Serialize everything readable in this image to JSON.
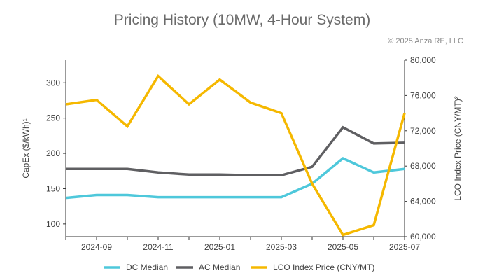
{
  "chart_data": {
    "type": "line",
    "title": "Pricing History (10MW, 4-Hour System)",
    "copyright": "© 2025 Anza RE, LLC",
    "ylabel_left": "CapEx ($/kWh)¹",
    "ylabel_right": "LCO Index Price (CNY/MT)²",
    "x": [
      "2024-08",
      "2024-09",
      "2024-10",
      "2024-11",
      "2024-12",
      "2025-01",
      "2025-02",
      "2025-03",
      "2025-04",
      "2025-05",
      "2025-06",
      "2025-07"
    ],
    "x_tick_labels": [
      "2024-09",
      "2024-11",
      "2025-01",
      "2025-03",
      "2025-05",
      "2025-07"
    ],
    "ylim_left": [
      82,
      332
    ],
    "yticks_left": [
      100,
      150,
      200,
      250,
      300
    ],
    "ylim_right": [
      60000,
      80000
    ],
    "yticks_right": [
      60000,
      64000,
      68000,
      72000,
      76000,
      80000
    ],
    "ytick_labels_right": [
      "60,000",
      "64,000",
      "68,000",
      "72,000",
      "76,000",
      "80,000"
    ],
    "series": [
      {
        "name": "DC Median",
        "axis": "left",
        "color": "#4ec8db",
        "values": [
          137,
          141,
          141,
          138,
          138,
          138,
          138,
          138,
          157,
          193,
          173,
          178
        ]
      },
      {
        "name": "AC Median",
        "axis": "left",
        "color": "#5f5f62",
        "values": [
          178,
          178,
          178,
          173,
          170,
          170,
          169,
          169,
          181,
          237,
          214,
          215
        ]
      },
      {
        "name": "LCO Index Price (CNY/MT)",
        "axis": "right",
        "color": "#f5b800",
        "values": [
          75000,
          75500,
          72500,
          78200,
          75000,
          77800,
          75200,
          74000,
          66000,
          60200,
          61300,
          74000
        ]
      }
    ],
    "grid": false,
    "legend_position": "bottom-center"
  }
}
